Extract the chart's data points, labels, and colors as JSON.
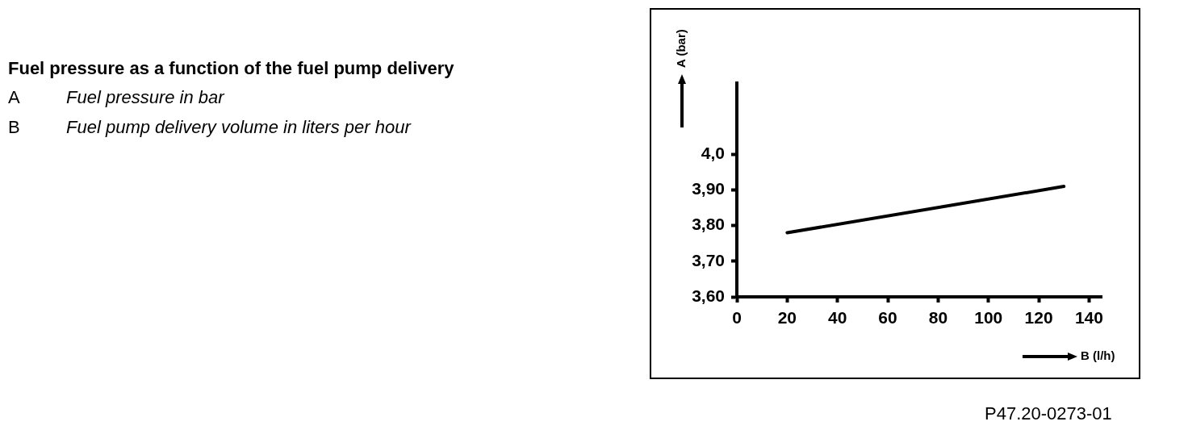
{
  "chart_data": {
    "type": "line",
    "title": "Fuel pressure as a function of the fuel pump delivery",
    "xlabel": "B (l/h)",
    "ylabel": "A (bar)",
    "annotations": [
      "A\tFuel pressure in bar",
      "B\tFuel pump delivery volume in liters per hour",
      "P47.20-0273-01"
    ],
    "series": [
      {
        "color": "#000000",
        "x": [
          20,
          130
        ],
        "values": [
          3.78,
          3.91
        ]
      }
    ],
    "xlim": [
      0,
      145
    ],
    "xticks": [
      0,
      20,
      40,
      60,
      80,
      100,
      120,
      140
    ],
    "ylim": [
      3.6,
      4.2
    ],
    "yticks": [
      {
        "value": 3.6,
        "label": "3,60"
      },
      {
        "value": 3.7,
        "label": "3,70"
      },
      {
        "value": 3.8,
        "label": "3,80"
      },
      {
        "value": 3.9,
        "label": "3,90"
      },
      {
        "value": 4.0,
        "label": "4,0"
      }
    ],
    "grid": false,
    "legend": false,
    "marker": "none",
    "line_style": "solid"
  }
}
